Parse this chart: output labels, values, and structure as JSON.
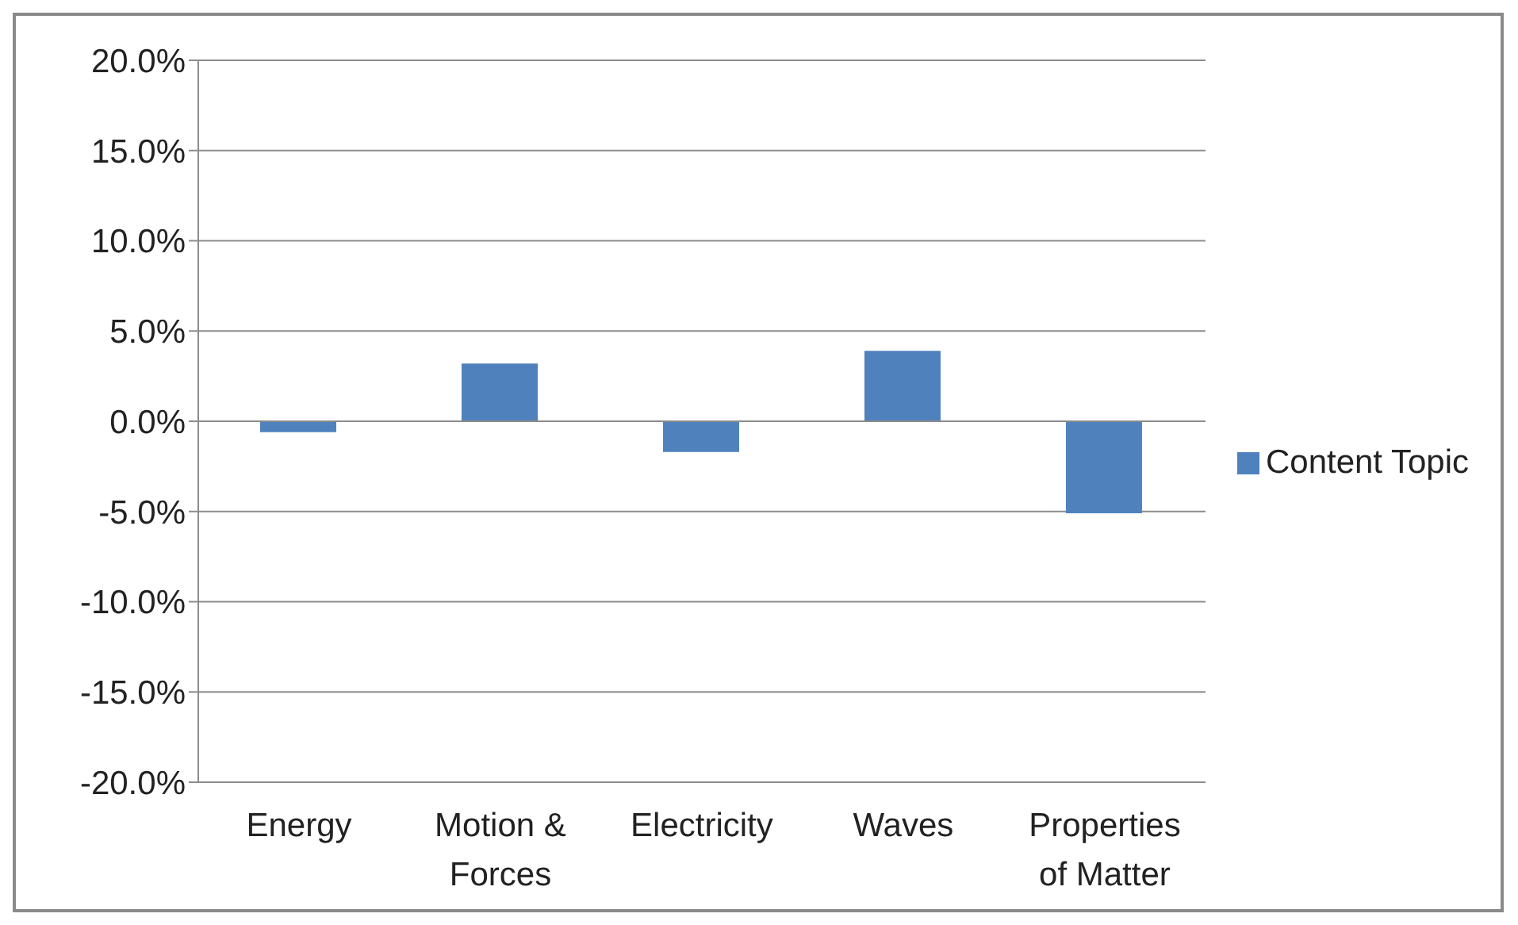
{
  "chart_data": {
    "type": "bar",
    "categories": [
      "Energy",
      "Motion & Forces",
      "Electricity",
      "Waves",
      "Properties of Matter"
    ],
    "series": [
      {
        "name": "Content Topic",
        "color": "#4f81bd",
        "values": [
          -0.6,
          3.2,
          -1.7,
          3.9,
          -5.1
        ]
      }
    ],
    "ylim": [
      -20,
      20
    ],
    "yticks": [
      {
        "value": -20,
        "label": "-20.0%"
      },
      {
        "value": -15,
        "label": "-15.0%"
      },
      {
        "value": -10,
        "label": "-10.0%"
      },
      {
        "value": -5,
        "label": "-5.0%"
      },
      {
        "value": 0,
        "label": "0.0%"
      },
      {
        "value": 5,
        "label": "5.0%"
      },
      {
        "value": 10,
        "label": "10.0%"
      },
      {
        "value": 15,
        "label": "15.0%"
      },
      {
        "value": 20,
        "label": "20.0%"
      }
    ],
    "grid": "y",
    "legend": "right"
  }
}
